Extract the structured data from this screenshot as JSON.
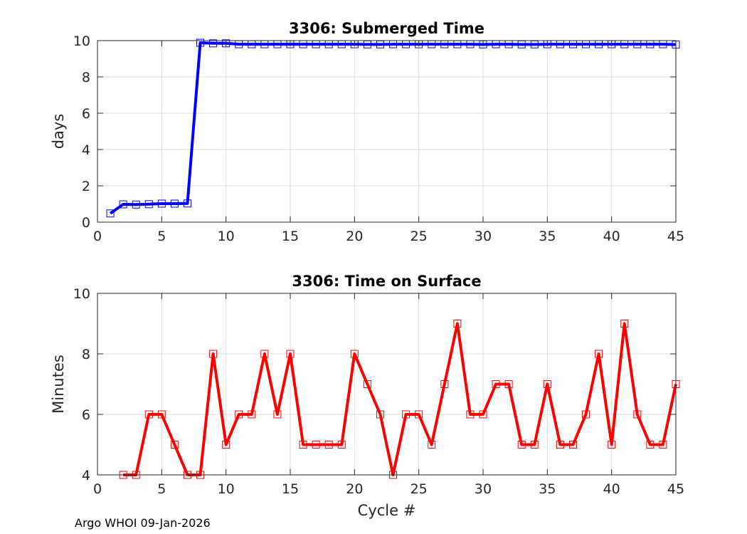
{
  "footer": {
    "text": "Argo WHOI 09-Jan-2026"
  },
  "chart_data": [
    {
      "type": "line",
      "title": "3306: Submerged Time",
      "xlabel": "",
      "ylabel": "days",
      "xlim": [
        0,
        45
      ],
      "ylim": [
        0,
        10
      ],
      "xticks": [
        0,
        5,
        10,
        15,
        20,
        25,
        30,
        35,
        40,
        45
      ],
      "yticks": [
        0,
        2,
        4,
        6,
        8,
        10
      ],
      "grid": true,
      "color": "#0000ff",
      "marker": "square",
      "x": [
        1,
        2,
        3,
        4,
        5,
        6,
        7,
        8,
        9,
        10,
        11,
        12,
        13,
        14,
        15,
        16,
        17,
        18,
        19,
        20,
        21,
        22,
        23,
        24,
        25,
        26,
        27,
        28,
        29,
        30,
        31,
        32,
        33,
        34,
        35,
        36,
        37,
        38,
        39,
        40,
        41,
        42,
        43,
        44,
        45
      ],
      "values": [
        0.48,
        0.98,
        0.97,
        0.99,
        1.02,
        1.02,
        1.03,
        9.88,
        9.85,
        9.85,
        9.8,
        9.8,
        9.8,
        9.8,
        9.8,
        9.8,
        9.8,
        9.8,
        9.8,
        9.8,
        9.79,
        9.79,
        9.8,
        9.8,
        9.8,
        9.8,
        9.8,
        9.8,
        9.8,
        9.79,
        9.8,
        9.8,
        9.79,
        9.79,
        9.8,
        9.8,
        9.8,
        9.8,
        9.8,
        9.8,
        9.8,
        9.8,
        9.8,
        9.8,
        9.78
      ]
    },
    {
      "type": "line",
      "title": "3306: Time on Surface",
      "xlabel": "Cycle #",
      "ylabel": "Minutes",
      "xlim": [
        0,
        45
      ],
      "ylim": [
        4,
        10
      ],
      "xticks": [
        0,
        5,
        10,
        15,
        20,
        25,
        30,
        35,
        40,
        45
      ],
      "yticks": [
        4,
        6,
        8,
        10
      ],
      "grid": true,
      "color": "#ff0000",
      "marker": "square",
      "x": [
        2,
        3,
        4,
        5,
        6,
        7,
        8,
        9,
        10,
        11,
        12,
        13,
        14,
        15,
        16,
        17,
        18,
        19,
        20,
        21,
        22,
        23,
        24,
        25,
        26,
        27,
        28,
        29,
        30,
        31,
        32,
        33,
        34,
        35,
        36,
        37,
        38,
        39,
        40,
        41,
        42,
        43,
        44,
        45
      ],
      "values": [
        4,
        4,
        6,
        6,
        5,
        4,
        4,
        8,
        5,
        6,
        6,
        8,
        6,
        8,
        5,
        5,
        5,
        5,
        8,
        7,
        6,
        4,
        6,
        6,
        5,
        7,
        9,
        6,
        6,
        7,
        7,
        5,
        5,
        7,
        5,
        5,
        6,
        8,
        5,
        9,
        6,
        5,
        5,
        7
      ]
    }
  ]
}
